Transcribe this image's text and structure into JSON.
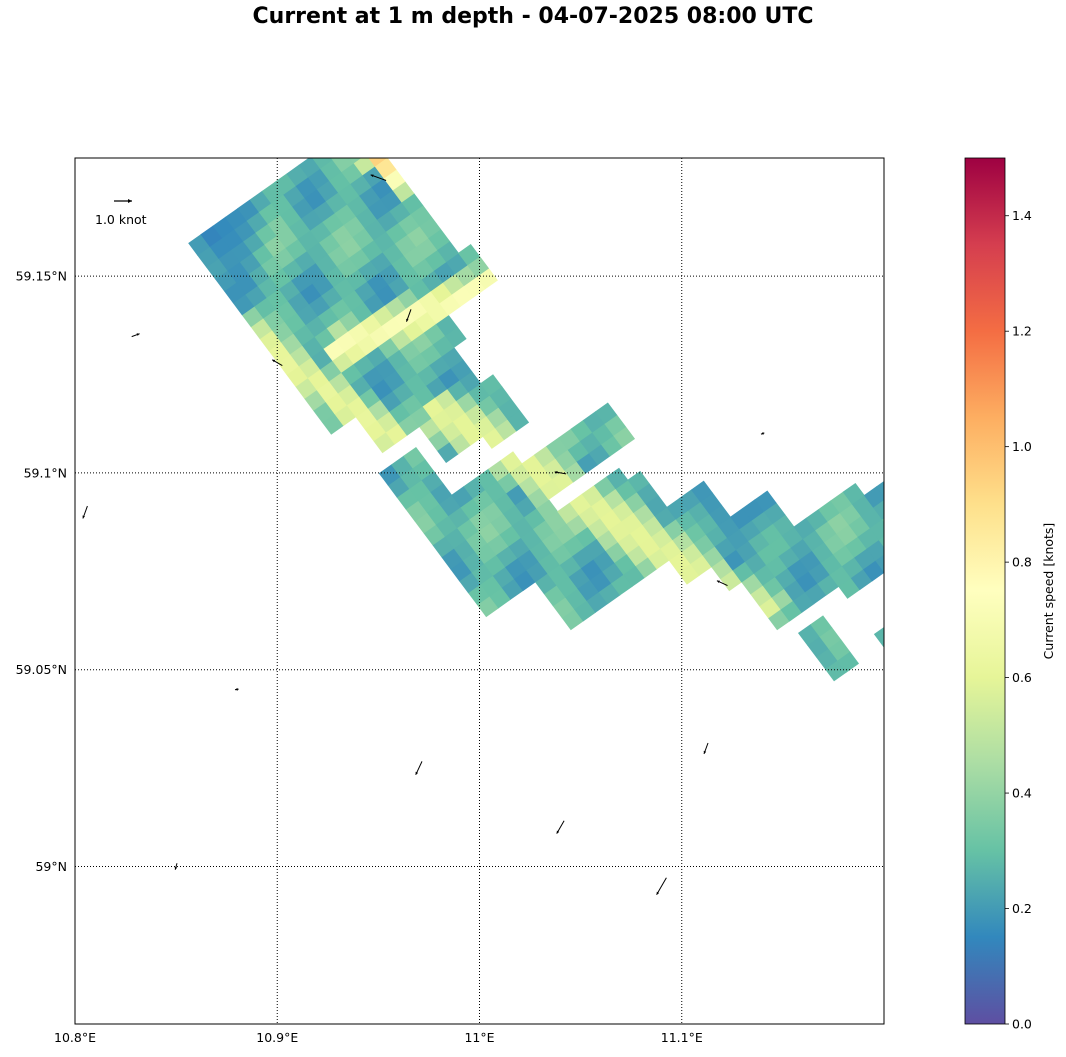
{
  "chart_data": {
    "type": "heatmap",
    "title": "Current at 1 m depth - 04-07-2025 08:00 UTC",
    "variable": "current speed",
    "depth_m": 1,
    "valid_time": "04-07-2025 08:00 UTC",
    "x_axis": {
      "range": [
        10.8,
        11.2
      ],
      "ticks": [
        10.8,
        10.9,
        11.0,
        11.1
      ],
      "tick_labels": [
        "10.8°E",
        "10.9°E",
        "11°E",
        "11.1°E"
      ]
    },
    "y_axis": {
      "range": [
        58.96,
        59.18
      ],
      "ticks": [
        59.0,
        59.05,
        59.1,
        59.15
      ],
      "tick_labels": [
        "59°N",
        "59.05°N",
        "59.1°N",
        "59.15°N"
      ]
    },
    "grid": true,
    "grid_style": "dotted",
    "colorbar": {
      "label": "Current speed [knots]",
      "range": [
        0.0,
        1.5
      ],
      "ticks": [
        0.0,
        0.2,
        0.4,
        0.6,
        0.8,
        1.0,
        1.2,
        1.4
      ],
      "tick_labels": [
        "0.0",
        "0.2",
        "0.4",
        "0.6",
        "0.8",
        "1.0",
        "1.2",
        "1.4"
      ],
      "colormap": "Spectral_r"
    },
    "quiver_key": {
      "value": 1.0,
      "label": "1.0 knot"
    },
    "grid_angle_deg": 36,
    "grid_cell_deg": 0.0075,
    "wet_rows": [
      {
        "t": [
          -0.016,
          0.074
        ],
        "s": [
          0.153,
          0.195
        ]
      },
      {
        "t": [
          -0.015,
          0.09
        ],
        "s": [
          0.131,
          0.226
        ]
      },
      {
        "t": [
          -0.01,
          0.07
        ],
        "s": [
          0.107,
          0.205
        ]
      },
      {
        "t": [
          0.071,
          0.1
        ],
        "s": [
          0.121,
          0.145
        ]
      },
      {
        "t": [
          0.005,
          0.06
        ],
        "s": [
          0.083,
          0.121
        ]
      },
      {
        "t": [
          0.025,
          0.067
        ],
        "s": [
          0.066,
          0.084
        ]
      },
      {
        "t": [
          -0.002,
          0.018
        ],
        "s": [
          0.041,
          0.076
        ]
      },
      {
        "t": [
          0.046,
          0.071
        ],
        "s": [
          0.053,
          0.073
        ]
      },
      {
        "t": [
          -0.003,
          0.057
        ],
        "s": [
          0.012,
          0.048
        ]
      },
      {
        "t": [
          0.05,
          0.11
        ],
        "s": [
          0.021,
          0.04
        ]
      },
      {
        "t": [
          -0.008,
          0.09
        ],
        "s": [
          -0.014,
          0.012
        ]
      },
      {
        "t": [
          0.025,
          0.102
        ],
        "s": [
          -0.04,
          0.0
        ]
      },
      {
        "t": [
          0.085,
          0.12
        ],
        "s": [
          -0.058,
          -0.02
        ]
      },
      {
        "t": [
          0.1,
          0.145
        ],
        "s": [
          -0.072,
          -0.046
        ]
      },
      {
        "t": [
          0.11,
          0.18
        ],
        "s": [
          -0.104,
          -0.062
        ]
      },
      {
        "t": [
          0.145,
          0.215
        ],
        "s": [
          -0.11,
          -0.075
        ]
      },
      {
        "t": [
          0.166,
          0.226
        ],
        "s": [
          -0.12,
          -0.093
        ]
      },
      {
        "t": [
          0.112,
          0.132
        ],
        "s": [
          -0.14,
          -0.108
        ]
      },
      {
        "t": [
          0.215,
          0.24
        ],
        "s": [
          -0.165,
          -0.128
        ]
      },
      {
        "t": [
          0.2,
          0.22
        ],
        "s": [
          -0.2,
          -0.15
        ]
      },
      {
        "t": [
          0.143,
          0.168
        ],
        "s": [
          -0.168,
          -0.132
        ]
      },
      {
        "t": [
          0.125,
          0.167
        ],
        "s": [
          -0.23,
          -0.19
        ]
      },
      {
        "t": [
          0.162,
          0.185
        ],
        "s": [
          -0.21,
          -0.18
        ]
      },
      {
        "t": [
          0.135,
          0.17
        ],
        "s": [
          -0.25,
          -0.22
        ]
      }
    ],
    "fast_bands": [
      {
        "center": [
          10.968,
          59.14
        ],
        "angle_deg": 24,
        "length": 0.09,
        "width": 0.022,
        "speed": 0.72
      },
      {
        "center": [
          10.966,
          59.175
        ],
        "angle_deg": -36,
        "length": 0.05,
        "width": 0.02,
        "speed": 0.95
      },
      {
        "center": [
          10.905,
          59.128
        ],
        "angle_deg": -36,
        "length": 0.13,
        "width": 0.022,
        "speed": 0.62
      },
      {
        "center": [
          11.06,
          59.09
        ],
        "angle_deg": -33,
        "length": 0.2,
        "width": 0.03,
        "speed": 0.6
      },
      {
        "center": [
          10.8,
          59.085
        ],
        "angle_deg": 60,
        "length": 0.05,
        "width": 0.03,
        "speed": 0.7
      },
      {
        "center": [
          10.965,
          59.02
        ],
        "angle_deg": 56,
        "length": 0.06,
        "width": 0.02,
        "speed": 0.78
      },
      {
        "center": [
          11.04,
          59.005
        ],
        "angle_deg": 56,
        "length": 0.12,
        "width": 0.024,
        "speed": 0.85
      },
      {
        "center": [
          11.087,
          58.995
        ],
        "angle_deg": 56,
        "length": 0.12,
        "width": 0.022,
        "speed": 1.08
      },
      {
        "center": [
          11.03,
          58.975
        ],
        "angle_deg": 56,
        "length": 0.07,
        "width": 0.02,
        "speed": 0.6
      },
      {
        "center": [
          11.11,
          59.03
        ],
        "angle_deg": 56,
        "length": 0.05,
        "width": 0.018,
        "speed": 0.6
      },
      {
        "center": [
          10.85,
          58.99
        ],
        "angle_deg": 56,
        "length": 0.1,
        "width": 0.05,
        "speed": 0.4
      }
    ],
    "slow_zones": [
      {
        "center": [
          10.87,
          59.04
        ],
        "radius": 0.05,
        "speed": 0.08
      },
      {
        "center": [
          10.99,
          59.005
        ],
        "radius": 0.03,
        "speed": 0.1
      },
      {
        "center": [
          11.13,
          59.1
        ],
        "radius": 0.05,
        "speed": 0.1
      },
      {
        "center": [
          11.11,
          59.165
        ],
        "radius": 0.03,
        "speed": 0.05
      },
      {
        "center": [
          10.95,
          59.09
        ],
        "radius": 0.015,
        "speed": 0.1
      },
      {
        "center": [
          10.87,
          59.16
        ],
        "radius": 0.03,
        "speed": 0.12
      }
    ],
    "background_speed": 0.28,
    "arrows": [
      {
        "lon": 10.83,
        "lat": 59.135,
        "dir": 20,
        "speed": 0.4
      },
      {
        "lon": 10.9,
        "lat": 59.128,
        "dir": 150,
        "speed": 0.6
      },
      {
        "lon": 10.965,
        "lat": 59.14,
        "dir": 250,
        "speed": 0.7
      },
      {
        "lon": 10.95,
        "lat": 59.175,
        "dir": 160,
        "speed": 0.9
      },
      {
        "lon": 11.04,
        "lat": 59.1,
        "dir": 170,
        "speed": 0.6
      },
      {
        "lon": 11.12,
        "lat": 59.072,
        "dir": 155,
        "speed": 0.6
      },
      {
        "lon": 10.805,
        "lat": 59.09,
        "dir": 250,
        "speed": 0.7
      },
      {
        "lon": 10.97,
        "lat": 59.025,
        "dir": 245,
        "speed": 0.8
      },
      {
        "lon": 11.04,
        "lat": 59.01,
        "dir": 240,
        "speed": 0.8
      },
      {
        "lon": 11.09,
        "lat": 58.995,
        "dir": 240,
        "speed": 1.1
      },
      {
        "lon": 11.112,
        "lat": 59.03,
        "dir": 250,
        "speed": 0.6
      },
      {
        "lon": 10.85,
        "lat": 59.0,
        "dir": 255,
        "speed": 0.3
      },
      {
        "lon": 10.88,
        "lat": 59.045,
        "dir": 190,
        "speed": 0.1
      },
      {
        "lon": 11.14,
        "lat": 59.11,
        "dir": 200,
        "speed": 0.1
      }
    ]
  }
}
